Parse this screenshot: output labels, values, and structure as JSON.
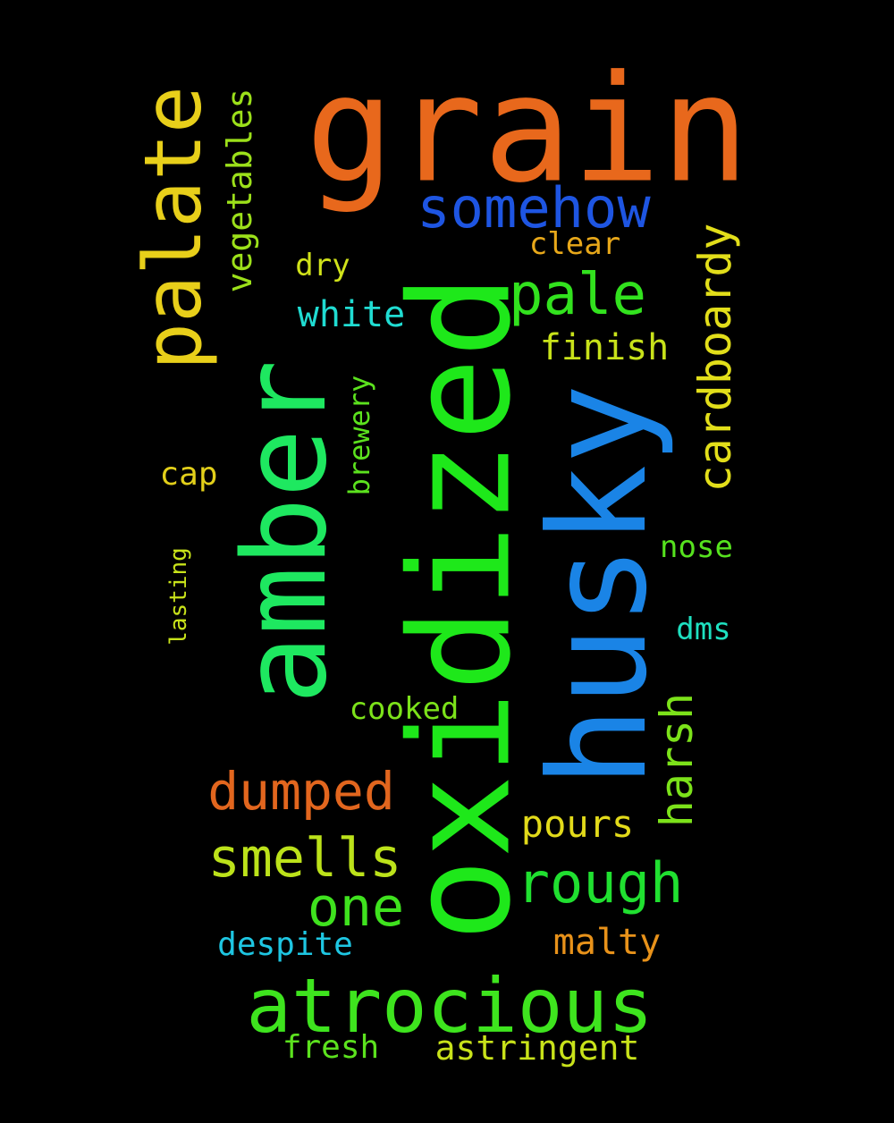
{
  "words": {
    "grain": "grain",
    "oxidized": "oxidized",
    "husky": "husky",
    "amber": "amber",
    "palate": "palate",
    "atrocious": "atrocious",
    "somehow": "somehow",
    "cardboardy": "cardboardy",
    "pale": "pale",
    "vegetables": "vegetables",
    "dumped": "dumped",
    "smells": "smells",
    "rough": "rough",
    "harsh": "harsh",
    "one": "one",
    "white": "white",
    "finish": "finish",
    "clear": "clear",
    "dry": "dry",
    "brewery": "brewery",
    "cap": "cap",
    "nose": "nose",
    "lasting": "lasting",
    "dms": "dms",
    "cooked": "cooked",
    "pours": "pours",
    "malty": "malty",
    "despite": "despite",
    "fresh": "fresh",
    "astringent": "astringent"
  },
  "colors": {
    "background": "#000000",
    "grain": "#e8681c",
    "oxidized": "#1ee81a",
    "husky": "#1a84e6",
    "amber": "#1ee860",
    "palate": "#e8cf1a",
    "atrocious": "#3ee41e",
    "somehow": "#1e55e2",
    "cardboardy": "#e2de1a",
    "pale": "#32e21e",
    "vegetables": "#9ce01a",
    "dumped": "#e2661e",
    "smells": "#bce21a",
    "rough": "#20e030",
    "harsh": "#7ce21a",
    "one": "#3fe21e",
    "white": "#20dcd2",
    "finish": "#c8e21a",
    "clear": "#e8a81a",
    "dry": "#d0e21a",
    "brewery": "#5ce21e",
    "cap": "#e2cf1a",
    "nose": "#56e21e",
    "lasting": "#c8e21a",
    "dms": "#1ee0c0",
    "cooked": "#7ce21a",
    "pours": "#e2da1a",
    "malty": "#e8921a",
    "despite": "#1ec6e2",
    "fresh": "#5ce21e",
    "astringent": "#c8e21a"
  }
}
